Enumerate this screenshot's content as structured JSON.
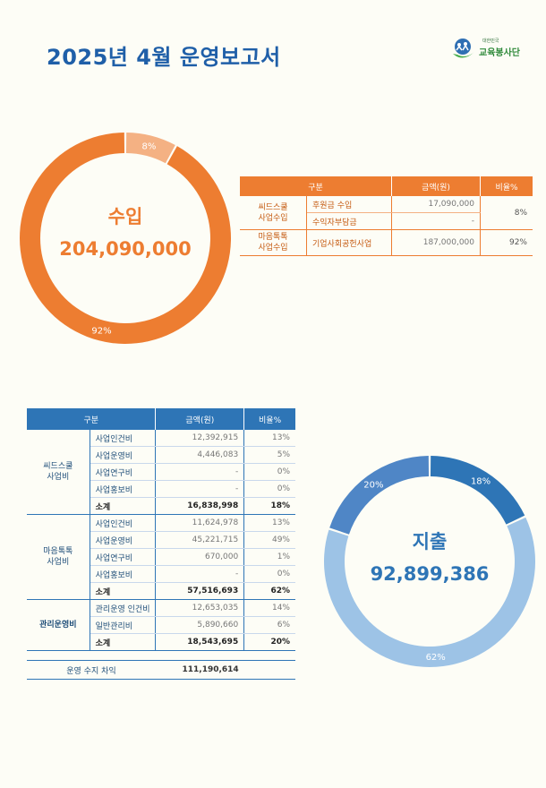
{
  "title": "2025년 4월 운영보고서",
  "logo": {
    "small": "대한민국",
    "name": "교육봉사단"
  },
  "colors": {
    "income_major": "#ed7d31",
    "income_minor": "#f4b183",
    "expense_a": "#2e75b6",
    "expense_b": "#9dc3e6",
    "expense_c": "#4f86c6",
    "income_text": "#ed7d31",
    "expense_text": "#2e75b6"
  },
  "income": {
    "label": "수입",
    "total": "204,090,000",
    "chart_data": {
      "type": "pie",
      "labels": [
        "8%",
        "92%"
      ],
      "values": [
        8,
        92
      ]
    },
    "table": {
      "headers": [
        "구분",
        "금액(원)",
        "비율%"
      ],
      "groups": [
        {
          "category": [
            "씨드스쿨",
            "사업수입"
          ],
          "pct": "8%",
          "rows": [
            {
              "item": "후원금 수입",
              "amount": "17,090,000"
            },
            {
              "item": "수익자부담금",
              "amount": "-"
            }
          ]
        },
        {
          "category": [
            "마음톡톡",
            "사업수입"
          ],
          "pct": "92%",
          "rows": [
            {
              "item": "기업사회공헌사업",
              "amount": "187,000,000"
            }
          ]
        }
      ]
    }
  },
  "expense": {
    "label": "지출",
    "total": "92,899,386",
    "chart_data": {
      "type": "pie",
      "labels": [
        "18%",
        "62%",
        "20%"
      ],
      "values": [
        18,
        62,
        20
      ]
    },
    "table": {
      "headers": [
        "구분",
        "금액(원)",
        "비율%"
      ],
      "groups": [
        {
          "category": [
            "씨드스쿨",
            "사업비"
          ],
          "rows": [
            {
              "item": "사업인건비",
              "amount": "12,392,915",
              "pct": "13%"
            },
            {
              "item": "사업운영비",
              "amount": "4,446,083",
              "pct": "5%"
            },
            {
              "item": "사업연구비",
              "amount": "-",
              "pct": "0%"
            },
            {
              "item": "사업홍보비",
              "amount": "-",
              "pct": "0%"
            }
          ],
          "subtotal": {
            "label": "소계",
            "amount": "16,838,998",
            "pct": "18%"
          }
        },
        {
          "category": [
            "마음톡톡",
            "사업비"
          ],
          "rows": [
            {
              "item": "사업인건비",
              "amount": "11,624,978",
              "pct": "13%"
            },
            {
              "item": "사업운영비",
              "amount": "45,221,715",
              "pct": "49%"
            },
            {
              "item": "사업연구비",
              "amount": "670,000",
              "pct": "1%"
            },
            {
              "item": "사업홍보비",
              "amount": "-",
              "pct": "0%"
            }
          ],
          "subtotal": {
            "label": "소계",
            "amount": "57,516,693",
            "pct": "62%"
          }
        },
        {
          "category": [
            "관리운영비"
          ],
          "rows": [
            {
              "item": "관리운영 인건비",
              "amount": "12,653,035",
              "pct": "14%"
            },
            {
              "item": "일반관리비",
              "amount": "5,890,660",
              "pct": "6%"
            }
          ],
          "subtotal": {
            "label": "소계",
            "amount": "18,543,695",
            "pct": "20%"
          }
        }
      ],
      "total": {
        "label": "운영 수지 차익",
        "amount": "111,190,614"
      }
    }
  }
}
